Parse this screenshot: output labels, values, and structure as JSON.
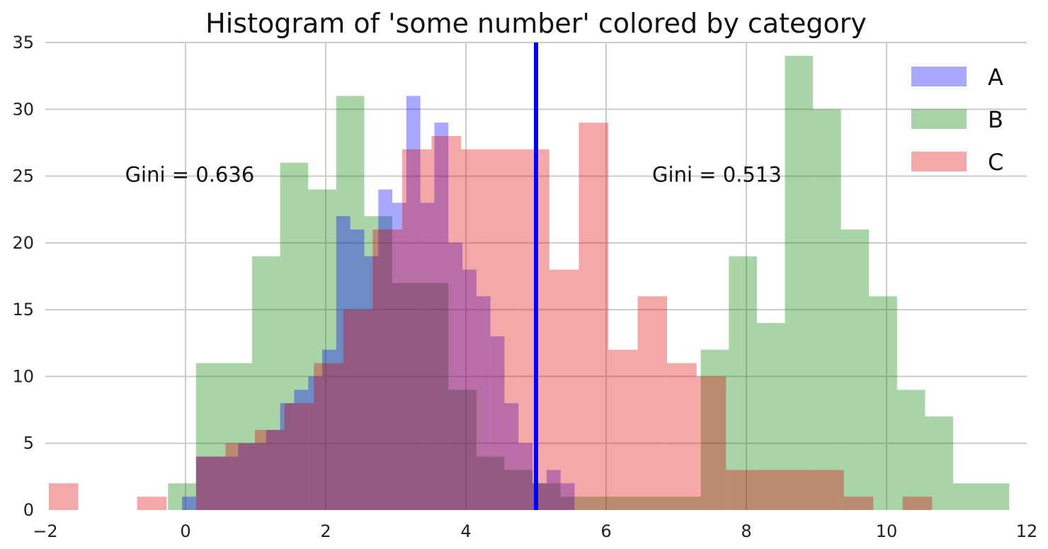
{
  "chart_data": {
    "type": "bar",
    "title": "Histogram of 'some number' colored by category",
    "xlabel": "",
    "ylabel": "",
    "xlim": [
      -2,
      12
    ],
    "ylim": [
      0,
      35
    ],
    "xticks": [
      -2,
      0,
      2,
      4,
      6,
      8,
      10,
      12
    ],
    "yticks": [
      0,
      5,
      10,
      15,
      20,
      25,
      30,
      35
    ],
    "xtick_labels": [
      "−2",
      "0",
      "2",
      "4",
      "6",
      "8",
      "10",
      "12"
    ],
    "ytick_labels": [
      "0",
      "5",
      "10",
      "15",
      "20",
      "25",
      "30",
      "35"
    ],
    "grid": true,
    "legend_position": "top-right",
    "vertical_line": {
      "x": 5.0,
      "color": "#0000ff"
    },
    "annotations": [
      {
        "text": "Gini = 0.636",
        "x": 0.06,
        "y": 25
      },
      {
        "text": "Gini = 0.513",
        "x": 7.58,
        "y": 25
      }
    ],
    "series": [
      {
        "name": "A",
        "color": "#0000ff",
        "edges": [
          -0.05,
          0.15,
          0.35,
          0.55,
          0.75,
          0.95,
          1.15,
          1.35,
          1.55,
          1.75,
          1.95,
          2.15,
          2.35,
          2.55,
          2.75,
          2.95,
          3.15,
          3.35,
          3.55,
          3.75,
          3.95,
          4.15,
          4.35,
          4.55,
          4.75,
          4.95,
          5.15,
          5.35,
          5.55
        ],
        "values": [
          1,
          4,
          4,
          4,
          5,
          5,
          6,
          8,
          9,
          10,
          12,
          22,
          21,
          19,
          24,
          23,
          31,
          23,
          29,
          20,
          18,
          16,
          13,
          8,
          5,
          2,
          3,
          2
        ]
      },
      {
        "name": "B",
        "color": "#008000",
        "edges": [
          -0.25,
          0.15,
          0.55,
          0.95,
          1.35,
          1.75,
          2.15,
          2.55,
          2.95,
          3.35,
          3.75,
          4.15,
          4.55,
          4.95,
          5.35,
          5.75,
          6.15,
          6.55,
          6.95,
          7.35,
          7.75,
          8.15,
          8.55,
          8.95,
          9.35,
          9.75,
          10.15,
          10.55,
          10.95,
          11.35,
          11.75
        ],
        "values": [
          2,
          11,
          11,
          19,
          26,
          24,
          31,
          22,
          17,
          17,
          9,
          4,
          3,
          2,
          1,
          1,
          1,
          1,
          1,
          12,
          19,
          14,
          34,
          30,
          21,
          16,
          9,
          7,
          2,
          2
        ]
      },
      {
        "name": "C",
        "color": "#e00000",
        "edges": [
          -1.95,
          -1.53,
          -1.11,
          -0.69,
          -0.27,
          0.15,
          0.57,
          0.99,
          1.41,
          1.83,
          2.25,
          2.67,
          3.09,
          3.51,
          3.93,
          4.35,
          4.77,
          5.19,
          5.61,
          6.03,
          6.45,
          6.87,
          7.29,
          7.71,
          8.13,
          8.55,
          8.97,
          9.39,
          9.81,
          10.23,
          10.65
        ],
        "values": [
          2,
          0,
          0,
          1,
          0,
          4,
          5,
          6,
          8,
          11,
          15,
          21,
          27,
          28,
          27,
          27,
          27,
          18,
          29,
          12,
          16,
          11,
          10,
          3,
          3,
          3,
          3,
          1,
          0,
          1
        ]
      }
    ]
  }
}
